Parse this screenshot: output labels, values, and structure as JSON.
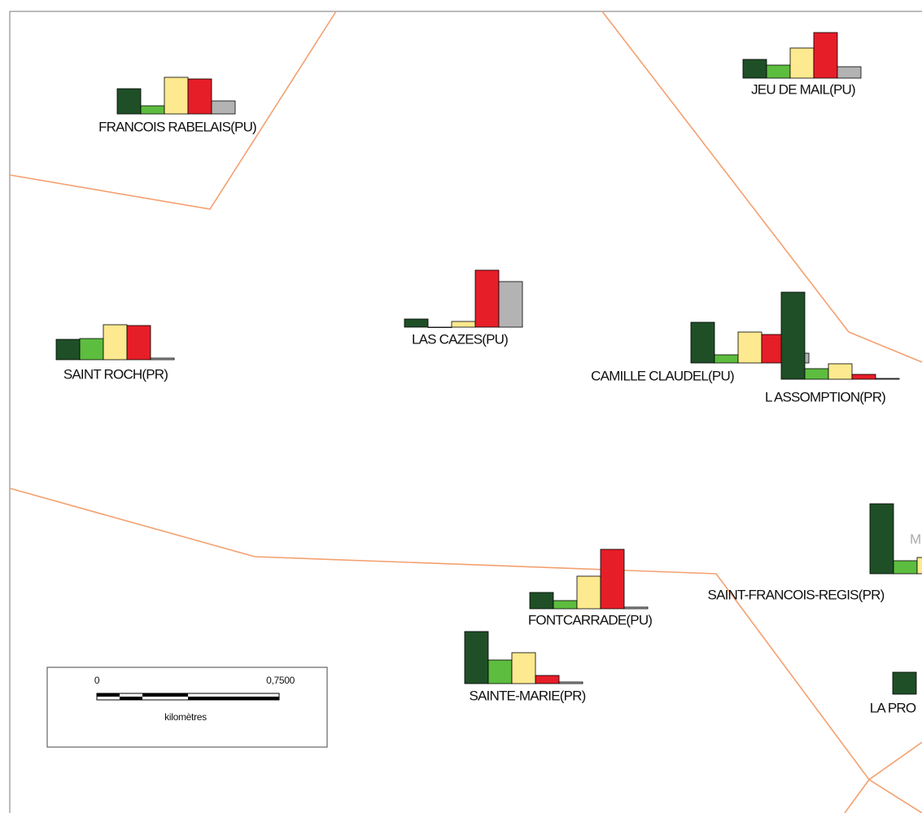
{
  "map": {
    "bar_colors": [
      "#1f4f27",
      "#5dbd3f",
      "#fde98f",
      "#e61e28",
      "#b3b3b3"
    ],
    "schools": [
      {
        "label": "FRANCOIS RABELAIS(PU)",
        "bars": [
          31,
          10,
          45,
          43,
          16
        ]
      },
      {
        "label": "JEU DE MAIL(PU)",
        "bars": [
          23,
          16,
          37,
          56,
          14
        ]
      },
      {
        "label": "LAS CAZES(PU)",
        "bars": [
          10,
          0,
          7,
          70,
          56
        ]
      },
      {
        "label": "SAINT ROCH(PR)",
        "bars": [
          25,
          26,
          43,
          42,
          2
        ]
      },
      {
        "label": "CAMILLE CLAUDEL(PU)",
        "bars": [
          50,
          10,
          38,
          35,
          12
        ]
      },
      {
        "label": "L ASSOMPTION(PR)",
        "bars": [
          107,
          13,
          19,
          6,
          1
        ]
      },
      {
        "label": "SAINT-FRANCOIS-REGIS(PR)",
        "bars": [
          86,
          16,
          20
        ]
      },
      {
        "label": "FONTCARRADE(PU)",
        "bars": [
          20,
          10,
          40,
          73,
          2
        ]
      },
      {
        "label": "SAINTE-MARIE(PR)",
        "bars": [
          64,
          29,
          38,
          10,
          2
        ]
      },
      {
        "label": "LA PRO",
        "bars": [
          27
        ]
      }
    ],
    "partial_texts": [
      "M"
    ],
    "scale_bar": {
      "start": "0",
      "end": "0,7500",
      "unit": "kilomètres"
    }
  }
}
